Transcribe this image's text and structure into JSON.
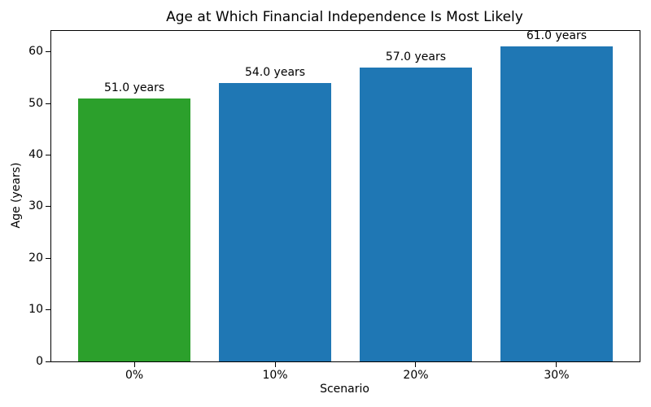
{
  "chart_data": {
    "type": "bar",
    "title": "Age at Which Financial Independence Is Most Likely",
    "xlabel": "Scenario",
    "ylabel": "Age (years)",
    "categories": [
      "0%",
      "10%",
      "20%",
      "30%"
    ],
    "values": [
      51.0,
      54.0,
      57.0,
      61.0
    ],
    "bar_labels": [
      "51.0 years",
      "54.0 years",
      "57.0 years",
      "61.0 years"
    ],
    "bar_colors": [
      "#2ca02c",
      "#1f77b4",
      "#1f77b4",
      "#1f77b4"
    ],
    "ylim": [
      0,
      64.05
    ],
    "yticks": [
      0,
      10,
      20,
      30,
      40,
      50,
      60
    ],
    "grid": false,
    "legend": "none",
    "axis_color": "#000000",
    "text_color": "#000000",
    "background_color": "#ffffff"
  }
}
